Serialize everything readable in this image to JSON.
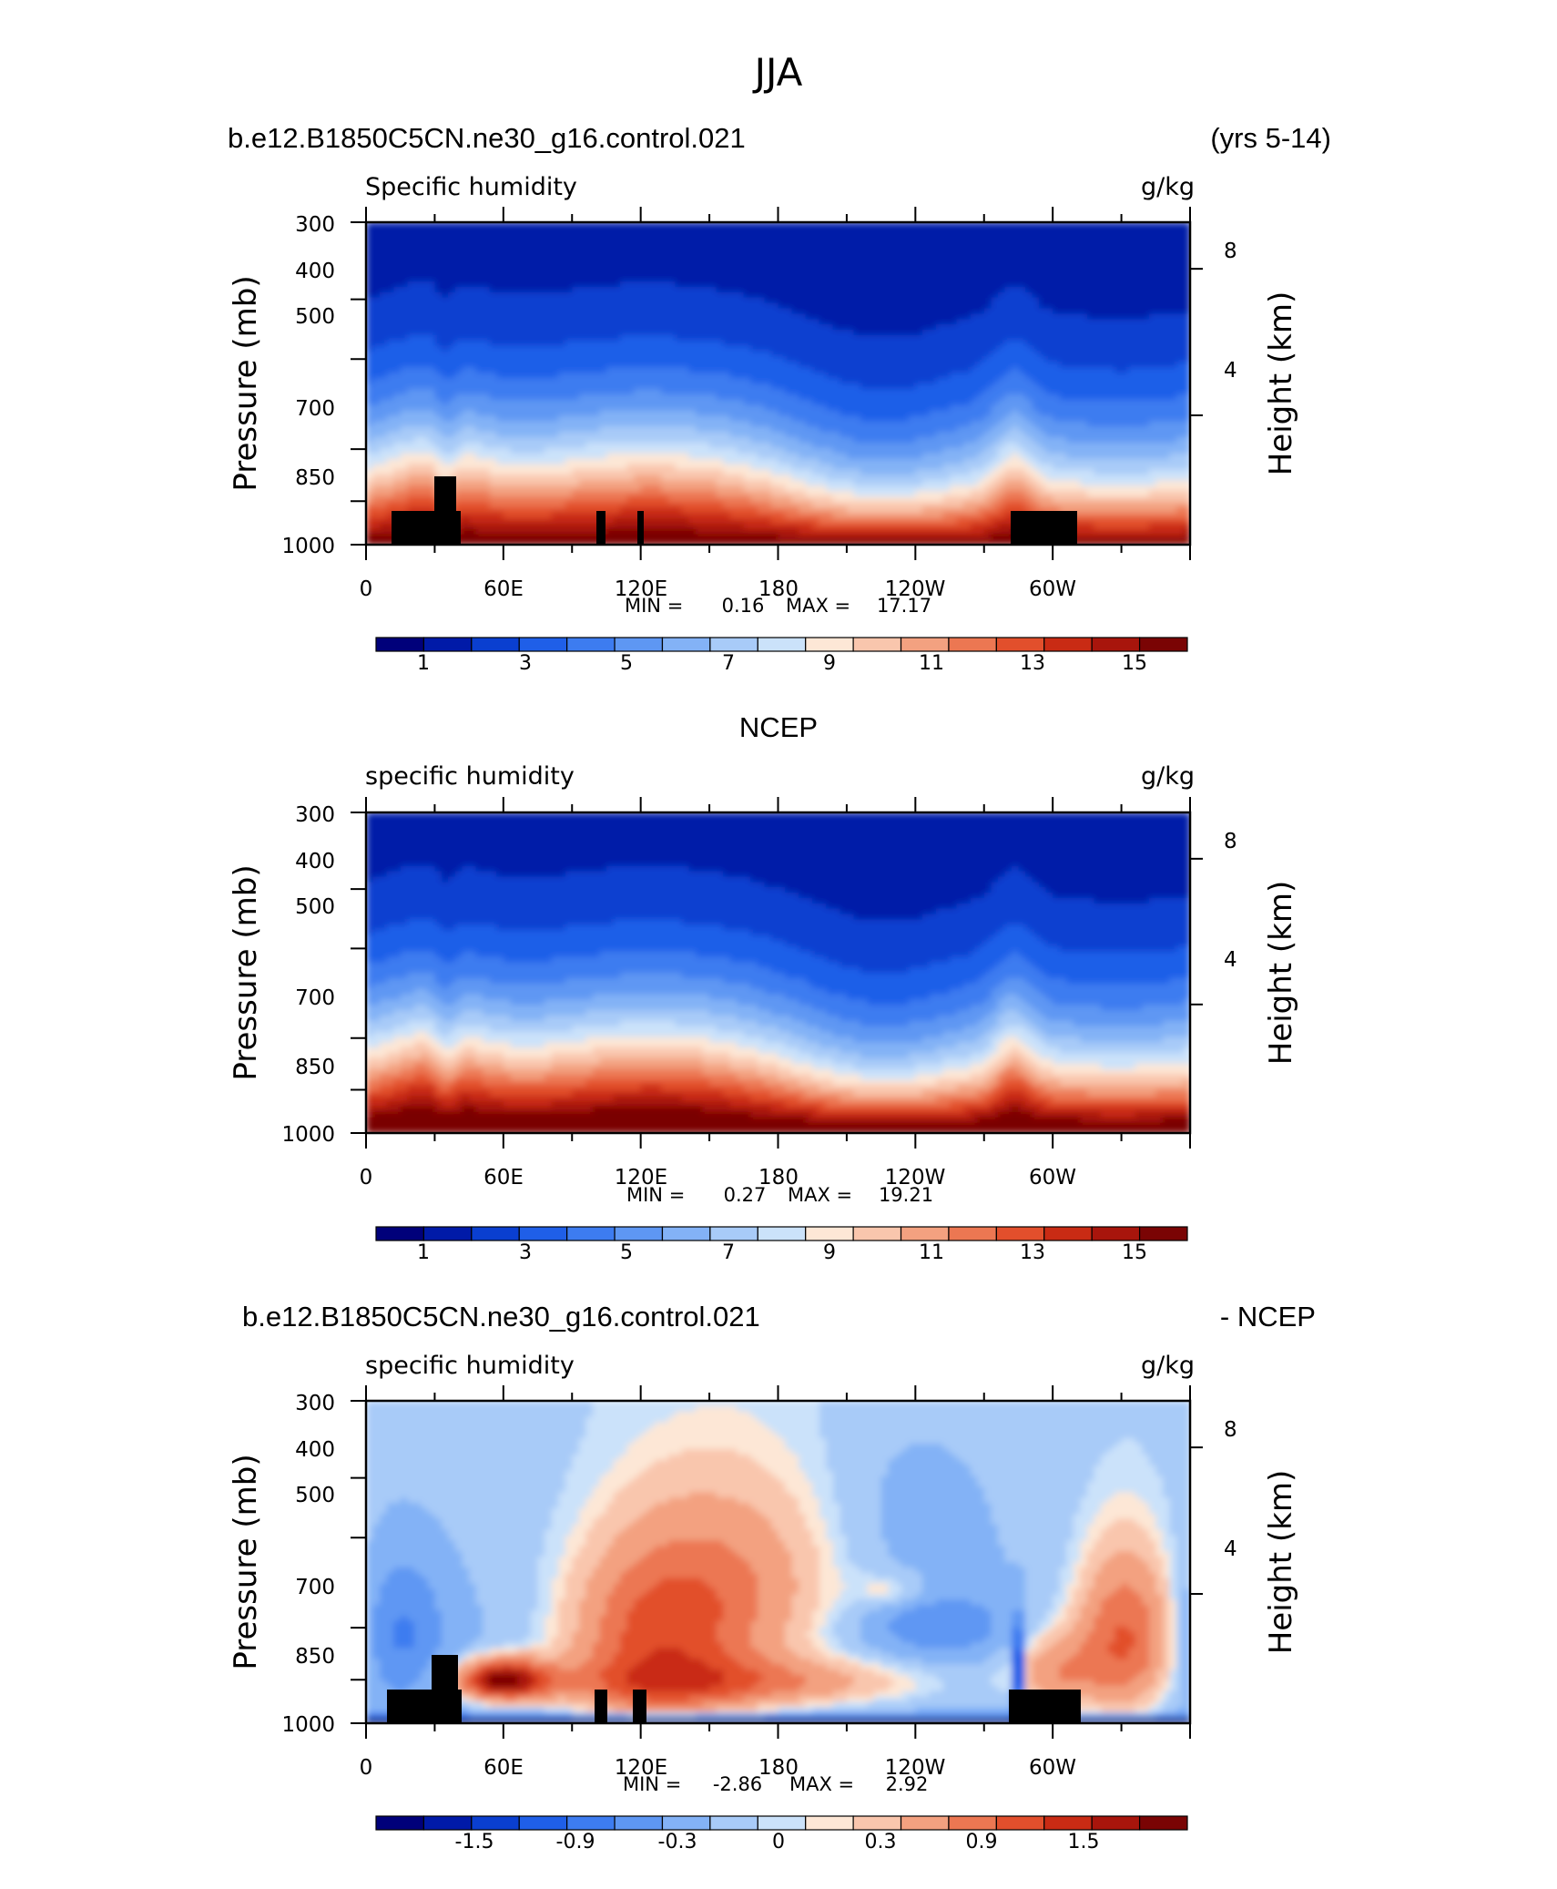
{
  "page_title": "JJA",
  "chart_data": [
    {
      "type": "heatmap",
      "header_left": "b.e12.B1850C5CN.ne30_g16.control.021",
      "header_right": "(yrs 5-14)",
      "left_string": "Specific humidity",
      "right_string": "g/kg",
      "ylabel": "Pressure (mb)",
      "ylabel_right": "Height (km)",
      "x_ticklabels": [
        "0",
        "60E",
        "120E",
        "180",
        "120W",
        "60W"
      ],
      "y_ticklabels": [
        "300",
        "400",
        "500",
        "700",
        "850",
        "1000"
      ],
      "y_values": [
        300,
        400,
        500,
        700,
        850,
        1000
      ],
      "right_ticklabels": [
        "8",
        "4"
      ],
      "xlim": [
        0,
        360
      ],
      "ylim": [
        1000,
        300
      ],
      "stats_min_label": "MIN =",
      "stats_min": "0.16",
      "stats_max_label": "MAX =",
      "stats_max": "17.17",
      "min_value": 0.16,
      "max_value": 17.17,
      "colorbar_labels": [
        "1",
        "3",
        "5",
        "7",
        "9",
        "11",
        "13",
        "15"
      ],
      "colorbar_levels": [
        0,
        1,
        2,
        3,
        4,
        5,
        6,
        7,
        8,
        9,
        10,
        11,
        12,
        13,
        14,
        15,
        16
      ],
      "kind": "abs",
      "topography": true,
      "colorbar_ramp": [
        "#00007a",
        "#001aa8",
        "#0a3fd0",
        "#1f5fe8",
        "#3d7cf0",
        "#5e97f3",
        "#83b2f6",
        "#a8cbf8",
        "#cbe2fa",
        "#fde7d6",
        "#f9c6ad",
        "#f3a180",
        "#ec7752",
        "#e24f2c",
        "#c92b14",
        "#a8150c",
        "#7a0404"
      ]
    },
    {
      "type": "heatmap",
      "header_center": "NCEP",
      "left_string": "specific humidity",
      "right_string": "g/kg",
      "ylabel": "Pressure (mb)",
      "ylabel_right": "Height (km)",
      "x_ticklabels": [
        "0",
        "60E",
        "120E",
        "180",
        "120W",
        "60W"
      ],
      "y_ticklabels": [
        "300",
        "400",
        "500",
        "700",
        "850",
        "1000"
      ],
      "y_values": [
        300,
        400,
        500,
        700,
        850,
        1000
      ],
      "right_ticklabels": [
        "8",
        "4"
      ],
      "xlim": [
        0,
        360
      ],
      "ylim": [
        1000,
        300
      ],
      "stats_min_label": "MIN =",
      "stats_min": "0.27",
      "stats_max_label": "MAX =",
      "stats_max": "19.21",
      "min_value": 0.27,
      "max_value": 19.21,
      "colorbar_labels": [
        "1",
        "3",
        "5",
        "7",
        "9",
        "11",
        "13",
        "15"
      ],
      "colorbar_levels": [
        0,
        1,
        2,
        3,
        4,
        5,
        6,
        7,
        8,
        9,
        10,
        11,
        12,
        13,
        14,
        15,
        16
      ],
      "kind": "abs",
      "topography": false,
      "colorbar_ramp": [
        "#00007a",
        "#001aa8",
        "#0a3fd0",
        "#1f5fe8",
        "#3d7cf0",
        "#5e97f3",
        "#83b2f6",
        "#a8cbf8",
        "#cbe2fa",
        "#fde7d6",
        "#f9c6ad",
        "#f3a180",
        "#ec7752",
        "#e24f2c",
        "#c92b14",
        "#a8150c",
        "#7a0404"
      ]
    },
    {
      "type": "heatmap",
      "header_left": "b.e12.B1850C5CN.ne30_g16.control.021",
      "header_right": "- NCEP",
      "left_string": "specific humidity",
      "right_string": "g/kg",
      "ylabel": "Pressure (mb)",
      "ylabel_right": "Height (km)",
      "x_ticklabels": [
        "0",
        "60E",
        "120E",
        "180",
        "120W",
        "60W"
      ],
      "y_ticklabels": [
        "300",
        "400",
        "500",
        "700",
        "850",
        "1000"
      ],
      "y_values": [
        300,
        400,
        500,
        700,
        850,
        1000
      ],
      "right_ticklabels": [
        "8",
        "4"
      ],
      "xlim": [
        0,
        360
      ],
      "ylim": [
        1000,
        300
      ],
      "stats_min_label": "MIN =",
      "stats_min": "-2.86",
      "stats_max_label": "MAX =",
      "stats_max": "2.92",
      "min_value": -2.86,
      "max_value": 2.92,
      "colorbar_labels": [
        "-1.5",
        "-0.9",
        "-0.3",
        "0",
        "0.3",
        "0.9",
        "1.5"
      ],
      "colorbar_levels": [
        -2.1,
        -1.8,
        -1.5,
        -1.2,
        -0.9,
        -0.6,
        -0.3,
        -0.1,
        0,
        0.1,
        0.3,
        0.6,
        0.9,
        1.2,
        1.5,
        1.8
      ],
      "kind": "diff",
      "topography": true,
      "colorbar_ramp": [
        "#00007a",
        "#001aa8",
        "#0a3fd0",
        "#1f5fe8",
        "#3d7cf0",
        "#5e97f3",
        "#83b2f6",
        "#a8cbf8",
        "#cbe2fa",
        "#fde7d6",
        "#f9c6ad",
        "#f3a180",
        "#ec7752",
        "#e24f2c",
        "#c92b14",
        "#a8150c",
        "#7a0404"
      ]
    }
  ]
}
